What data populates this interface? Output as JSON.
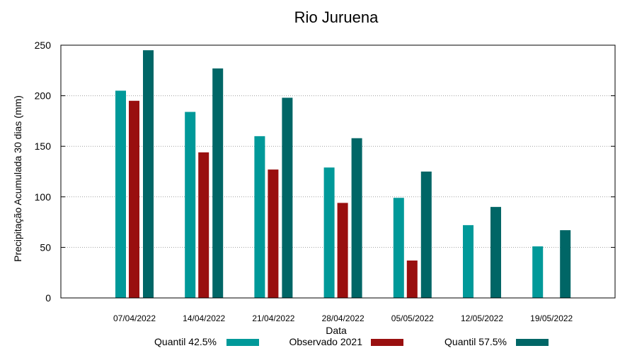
{
  "chart_data": {
    "type": "bar",
    "title": "Rio Juruena",
    "xlabel": "Data",
    "ylabel": "Precipitação Acumulada 30 dias (mm)",
    "ylim": [
      0,
      250
    ],
    "yticks": [
      0,
      50,
      100,
      150,
      200,
      250
    ],
    "grid": true,
    "legend_position": "bottom",
    "categories": [
      "07/04/2022",
      "14/04/2022",
      "21/04/2022",
      "28/04/2022",
      "05/05/2022",
      "12/05/2022",
      "19/05/2022"
    ],
    "series": [
      {
        "name": "Quantil 42.5%",
        "color": "#009999",
        "values": [
          205,
          184,
          160,
          129,
          99,
          72,
          51
        ]
      },
      {
        "name": "Observado 2021",
        "color": "#990f0f",
        "values": [
          195,
          144,
          127,
          94,
          37,
          null,
          null
        ]
      },
      {
        "name": "Quantil 57.5%",
        "color": "#006666",
        "values": [
          245,
          227,
          198,
          158,
          125,
          90,
          67
        ]
      }
    ]
  }
}
